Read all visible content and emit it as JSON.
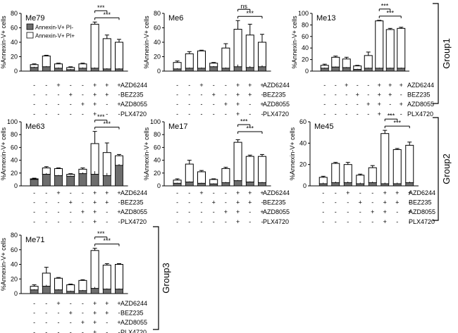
{
  "legend": {
    "pos_label": "Annexin-V+ PI-",
    "neg_label": "Annexin-V+ PI+",
    "pos_color": "#6d6d6d",
    "neg_color": "#ffffff"
  },
  "row_labels": [
    "AZD6244",
    "BEZ235",
    "AZD8055",
    "PLX4720"
  ],
  "y_label": "%Annexin-V+ cells",
  "groups": [
    {
      "name": "Group1"
    },
    {
      "name": "Group2"
    },
    {
      "name": "Group3"
    }
  ],
  "chart_data": [
    {
      "type": "bar",
      "title": "Me79",
      "ylim": [
        0,
        80
      ],
      "yticks": [
        0,
        20,
        40,
        60,
        80
      ],
      "series": [
        {
          "name": "Annexin-V+ PI-",
          "values": [
            5,
            6,
            4,
            2,
            4,
            4,
            3,
            3
          ],
          "errors": [
            1,
            1,
            1,
            1,
            1,
            1,
            1,
            1
          ]
        },
        {
          "name": "Annexin-V+ PI+",
          "values": [
            4,
            15,
            6,
            3,
            6,
            61,
            42,
            37
          ],
          "errors": [
            1,
            1,
            1,
            1,
            1,
            3,
            5,
            4
          ]
        }
      ],
      "conditions": [
        [
          "-",
          "-",
          "+",
          "-",
          "-",
          "+",
          "+",
          "+"
        ],
        [
          "-",
          "-",
          "-",
          "+",
          "-",
          "+",
          "+",
          "-"
        ],
        [
          "-",
          "-",
          "-",
          "-",
          "+",
          "+",
          "-",
          "+"
        ],
        [
          "-",
          "-",
          "-",
          "-",
          "-",
          "+",
          "-",
          "-"
        ]
      ],
      "sig": [
        {
          "from": 5,
          "to": 6,
          "label": "***"
        },
        {
          "from": 5,
          "to": 7,
          "label": "***"
        }
      ],
      "show_legend": true,
      "show_rows": true
    },
    {
      "type": "bar",
      "title": "Me6",
      "ylim": [
        0,
        80
      ],
      "yticks": [
        0,
        20,
        40,
        60,
        80
      ],
      "series": [
        {
          "name": "Annexin-V+ PI-",
          "values": [
            3,
            4,
            4,
            6,
            4,
            6,
            5,
            6
          ],
          "errors": [
            1,
            1,
            1,
            1,
            1,
            3,
            2,
            2
          ]
        },
        {
          "name": "Annexin-V+ PI+",
          "values": [
            9,
            20,
            24,
            5,
            28,
            52,
            45,
            34
          ],
          "errors": [
            2,
            3,
            1,
            1,
            6,
            12,
            15,
            11
          ]
        }
      ],
      "conditions": [
        [
          "-",
          "-",
          "+",
          "-",
          "-",
          "+",
          "+",
          "+"
        ],
        [
          "-",
          "-",
          "-",
          "+",
          "-",
          "+",
          "+",
          "-"
        ],
        [
          "-",
          "-",
          "-",
          "-",
          "+",
          "+",
          "-",
          "+"
        ],
        [
          "-",
          "-",
          "-",
          "-",
          "-",
          "+",
          "-",
          "-"
        ]
      ],
      "sig": [
        {
          "from": 5,
          "to": 6,
          "label": "ns"
        },
        {
          "from": 5,
          "to": 7,
          "label": "***"
        }
      ],
      "show_legend": false,
      "show_rows": true
    },
    {
      "type": "bar",
      "title": "Me13",
      "ylim": [
        0,
        100
      ],
      "yticks": [
        0,
        20,
        40,
        60,
        80,
        100
      ],
      "series": [
        {
          "name": "Annexin-V+ PI-",
          "values": [
            5,
            7,
            6,
            3,
            5,
            5,
            5,
            5
          ],
          "errors": [
            1,
            1,
            1,
            1,
            1,
            1,
            1,
            1
          ]
        },
        {
          "name": "Annexin-V+ PI+",
          "values": [
            5,
            17,
            15,
            6,
            22,
            82,
            67,
            69
          ],
          "errors": [
            2,
            2,
            3,
            1,
            6,
            1,
            2,
            2
          ]
        }
      ],
      "conditions": [
        [
          "-",
          "-",
          "+",
          "-",
          "-",
          "+",
          "+",
          "+"
        ],
        [
          "-",
          "-",
          "-",
          "+",
          "-",
          "+",
          "+",
          "-"
        ],
        [
          "-",
          "-",
          "-",
          "-",
          "+",
          "+",
          "-",
          "+"
        ],
        [
          "-",
          "-",
          "-",
          "-",
          "-",
          "+",
          "-",
          "-"
        ]
      ],
      "sig": [
        {
          "from": 5,
          "to": 6,
          "label": "***"
        },
        {
          "from": 5,
          "to": 7,
          "label": "***"
        }
      ],
      "show_legend": false,
      "show_rows": true
    },
    {
      "type": "bar",
      "title": "Me63",
      "ylim": [
        0,
        100
      ],
      "yticks": [
        0,
        20,
        40,
        60,
        80,
        100
      ],
      "series": [
        {
          "name": "Annexin-V+ PI-",
          "values": [
            10,
            18,
            16,
            15,
            19,
            18,
            16,
            32
          ],
          "errors": [
            1,
            2,
            1,
            1,
            2,
            5,
            4,
            2
          ]
        },
        {
          "name": "Annexin-V+ PI+",
          "values": [
            1,
            10,
            11,
            3,
            7,
            48,
            36,
            15
          ],
          "errors": [
            1,
            2,
            1,
            1,
            2,
            19,
            15,
            2
          ]
        }
      ],
      "conditions": [
        [
          "-",
          "-",
          "+",
          "-",
          "-",
          "+",
          "+",
          "+"
        ],
        [
          "-",
          "-",
          "-",
          "+",
          "-",
          "+",
          "+",
          "-"
        ],
        [
          "-",
          "-",
          "-",
          "-",
          "+",
          "+",
          "-",
          "+"
        ],
        [
          "-",
          "-",
          "-",
          "-",
          "-",
          "+",
          "-",
          "-"
        ]
      ],
      "sig": [
        {
          "from": 5,
          "to": 6,
          "label": "***"
        },
        {
          "from": 5,
          "to": 7,
          "label": "***"
        }
      ],
      "show_legend": false,
      "show_rows": true
    },
    {
      "type": "bar",
      "title": "Me17",
      "ylim": [
        0,
        100
      ],
      "yticks": [
        0,
        20,
        40,
        60,
        80,
        100
      ],
      "series": [
        {
          "name": "Annexin-V+ PI-",
          "values": [
            4,
            6,
            4,
            3,
            5,
            8,
            6,
            5
          ],
          "errors": [
            1,
            1,
            1,
            1,
            1,
            1,
            1,
            1
          ]
        },
        {
          "name": "Annexin-V+ PI+",
          "values": [
            5,
            28,
            18,
            7,
            22,
            60,
            40,
            41
          ],
          "errors": [
            2,
            6,
            2,
            1,
            2,
            4,
            2,
            3
          ]
        }
      ],
      "conditions": [
        [
          "-",
          "-",
          "+",
          "-",
          "-",
          "+",
          "+",
          "+"
        ],
        [
          "-",
          "-",
          "-",
          "+",
          "-",
          "+",
          "+",
          "-"
        ],
        [
          "-",
          "-",
          "-",
          "-",
          "+",
          "+",
          "-",
          "+"
        ],
        [
          "-",
          "-",
          "-",
          "-",
          "-",
          "+",
          "-",
          "-"
        ]
      ],
      "sig": [
        {
          "from": 5,
          "to": 6,
          "label": "***"
        },
        {
          "from": 5,
          "to": 7,
          "label": "***"
        }
      ],
      "show_legend": false,
      "show_rows": true
    },
    {
      "type": "bar",
      "title": "Me45",
      "ylim": [
        0,
        60
      ],
      "yticks": [
        0,
        20,
        40,
        60
      ],
      "series": [
        {
          "name": "Annexin-V+ PI-",
          "values": [
            2,
            3,
            3,
            2,
            3,
            2,
            2,
            3
          ],
          "errors": [
            1,
            1,
            1,
            1,
            1,
            1,
            1,
            1
          ]
        },
        {
          "name": "Annexin-V+ PI+",
          "values": [
            6,
            18,
            17,
            8,
            14,
            47,
            32,
            35
          ],
          "errors": [
            1,
            1,
            2,
            1,
            2,
            3,
            1,
            3
          ]
        }
      ],
      "conditions": [
        [
          "-",
          "-",
          "+",
          "-",
          "-",
          "+",
          "+",
          "+"
        ],
        [
          "-",
          "-",
          "-",
          "+",
          "-",
          "+",
          "+",
          "-"
        ],
        [
          "-",
          "-",
          "-",
          "-",
          "+",
          "+",
          "-",
          "+"
        ],
        [
          "-",
          "-",
          "-",
          "-",
          "-",
          "+",
          "-",
          "-"
        ]
      ],
      "sig": [
        {
          "from": 5,
          "to": 6,
          "label": "***"
        },
        {
          "from": 5,
          "to": 7,
          "label": "***"
        }
      ],
      "show_legend": false,
      "show_rows": true
    },
    {
      "type": "bar",
      "title": "Me71",
      "ylim": [
        0,
        80
      ],
      "yticks": [
        0,
        20,
        40,
        60,
        80
      ],
      "series": [
        {
          "name": "Annexin-V+ PI-",
          "values": [
            5,
            10,
            5,
            3,
            4,
            7,
            6,
            6
          ],
          "errors": [
            1,
            2,
            1,
            1,
            1,
            2,
            1,
            1
          ]
        },
        {
          "name": "Annexin-V+ PI+",
          "values": [
            5,
            18,
            16,
            9,
            14,
            52,
            33,
            34
          ],
          "errors": [
            2,
            8,
            1,
            1,
            1,
            3,
            2,
            1
          ]
        }
      ],
      "conditions": [
        [
          "-",
          "-",
          "+",
          "-",
          "-",
          "+",
          "+",
          "+"
        ],
        [
          "-",
          "-",
          "-",
          "+",
          "-",
          "+",
          "+",
          "-"
        ],
        [
          "-",
          "-",
          "-",
          "-",
          "+",
          "+",
          "-",
          "+"
        ],
        [
          "-",
          "-",
          "-",
          "-",
          "-",
          "+",
          "-",
          "-"
        ]
      ],
      "sig": [
        {
          "from": 5,
          "to": 6,
          "label": "***"
        },
        {
          "from": 5,
          "to": 7,
          "label": "***"
        }
      ],
      "show_legend": false,
      "show_rows": true
    }
  ]
}
